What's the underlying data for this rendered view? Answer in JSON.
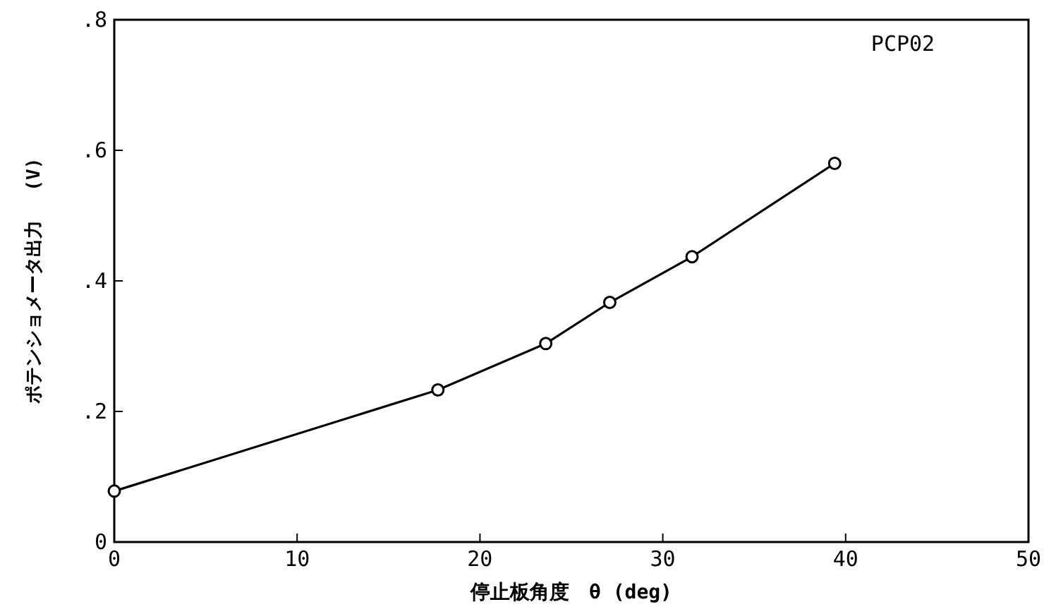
{
  "chart_data": {
    "type": "line",
    "xlabel": "停止板角度　θ (deg)",
    "ylabel": "ポテンショメータ出力　 (V)",
    "annotations": [
      "PCP02"
    ],
    "x": [
      0,
      17.7,
      23.6,
      27.1,
      31.6,
      39.4
    ],
    "series": [
      {
        "color": "#000000",
        "values": [
          0.078,
          0.233,
          0.304,
          0.367,
          0.437,
          0.58
        ]
      }
    ],
    "marker": "circle",
    "line_style": "solid",
    "grid": false,
    "xlim": [
      0,
      50
    ],
    "xticks": [
      0,
      10,
      20,
      30,
      40,
      50
    ],
    "ylim": [
      0,
      0.8
    ],
    "yticks": [
      0,
      {
        "value": 0.2,
        "label": ".2"
      },
      {
        "value": 0.4,
        "label": ".4"
      },
      {
        "value": 0.6,
        "label": ".6"
      },
      {
        "value": 0.8,
        "label": ".8"
      }
    ]
  }
}
